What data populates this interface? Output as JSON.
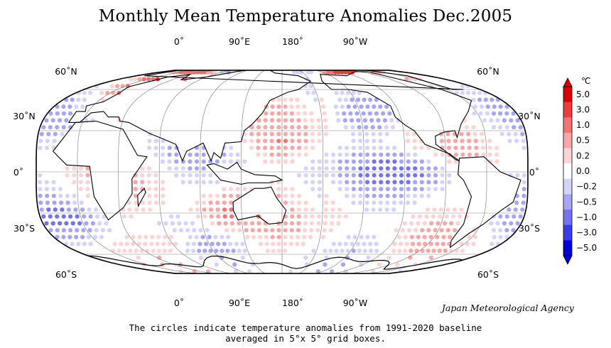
{
  "title": "Monthly Mean Temperature Anomalies Dec.2005",
  "longitude_labels_top": [
    "0˚",
    "90˚E",
    "180˚",
    "90˚W"
  ],
  "longitude_labels_bottom": [
    "0˚",
    "90˚E",
    "180˚",
    "90˚W"
  ],
  "latitude_labels": [
    "60˚N",
    "30˚N",
    "0˚",
    "30˚S",
    "60˚S"
  ],
  "credit": "Japan Meteorological Agency",
  "caption_line1": "The circles indicate temperature anomalies from 1991-2020 baseline",
  "caption_line2": "averaged in 5°x 5° grid boxes.",
  "legend": {
    "unit": "℃",
    "levels": [
      "5.0",
      "3.0",
      "1.0",
      "0.5",
      "0.2",
      "0.0",
      "−0.2",
      "−0.5",
      "−1.0",
      "−3.0",
      "−5.0"
    ],
    "colors": [
      "#dd0000",
      "#ee3b3b",
      "#f47373",
      "#f8a6a6",
      "#fbd4d4",
      "#ffffff",
      "#d4d4fb",
      "#a6a6f8",
      "#7373f4",
      "#3b3bee",
      "#0000dd"
    ]
  }
}
